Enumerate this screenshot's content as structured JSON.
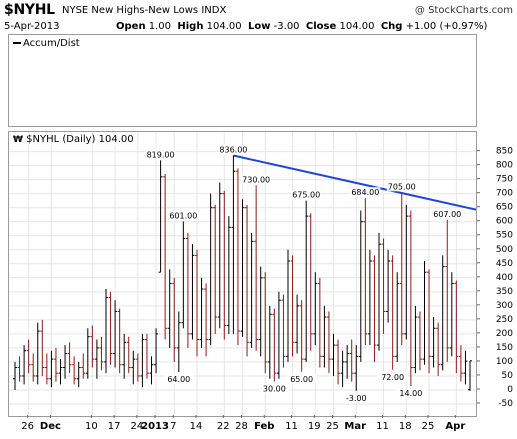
{
  "header": {
    "symbol": "$NYHL",
    "description": "NYSE New Highs-New Lows",
    "exchange": "INDX",
    "copyright": "@ StockCharts.com",
    "date": "5-Apr-2013",
    "open_label": "Open",
    "open_value": "1.00",
    "high_label": "High",
    "high_value": "104.00",
    "low_label": "Low",
    "low_value": "-3.00",
    "close_label": "Close",
    "close_value": "104.00",
    "chg_label": "Chg",
    "chg_value": "+1.00 (+0.97%)"
  },
  "indicator_panel": {
    "legend": "Accum/Dist"
  },
  "main_panel": {
    "legend": "$NYHL (Daily) 104.00",
    "legend_icon": "chart-style-icon"
  },
  "chart_data": {
    "type": "bar",
    "style": "ohlc",
    "series_name": "$NYHL (Daily)",
    "colors": {
      "up": "#000000",
      "down": "#8b1a1a",
      "trendline": "#1f45d6",
      "grid": "#e6e6e6"
    },
    "ylim": [
      -50,
      870
    ],
    "y_ticks": [
      -50,
      0,
      50,
      100,
      150,
      200,
      250,
      300,
      350,
      400,
      450,
      500,
      550,
      600,
      650,
      700,
      750,
      800,
      850
    ],
    "grid": true,
    "x_tick_labels": [
      {
        "label": "26",
        "index": 3,
        "bold": false
      },
      {
        "label": "Dec",
        "index": 8,
        "bold": true
      },
      {
        "label": "10",
        "index": 17,
        "bold": false
      },
      {
        "label": "17",
        "index": 22,
        "bold": false
      },
      {
        "label": "24",
        "index": 27,
        "bold": false
      },
      {
        "label": "2013",
        "index": 31,
        "bold": true
      },
      {
        "label": "7",
        "index": 35,
        "bold": false
      },
      {
        "label": "14",
        "index": 40,
        "bold": false
      },
      {
        "label": "22",
        "index": 46,
        "bold": false
      },
      {
        "label": "28",
        "index": 50,
        "bold": false
      },
      {
        "label": "Feb",
        "index": 55,
        "bold": true
      },
      {
        "label": "11",
        "index": 61,
        "bold": false
      },
      {
        "label": "19",
        "index": 66,
        "bold": false
      },
      {
        "label": "25",
        "index": 70,
        "bold": false
      },
      {
        "label": "Mar",
        "index": 75,
        "bold": true
      },
      {
        "label": "11",
        "index": 81,
        "bold": false
      },
      {
        "label": "18",
        "index": 86,
        "bold": false
      },
      {
        "label": "25",
        "index": 91,
        "bold": false
      },
      {
        "label": "Apr",
        "index": 97,
        "bold": true
      }
    ],
    "annotations": [
      {
        "text": "819.00",
        "index": 32,
        "value": 819,
        "pos": "above"
      },
      {
        "text": "601.00",
        "index": 37,
        "value": 601,
        "pos": "above"
      },
      {
        "text": "64.00",
        "index": 36,
        "value": 64,
        "pos": "below"
      },
      {
        "text": "836.00",
        "index": 48,
        "value": 836,
        "pos": "above"
      },
      {
        "text": "730.00",
        "index": 53,
        "value": 730,
        "pos": "above"
      },
      {
        "text": "30.00",
        "index": 57,
        "value": 30,
        "pos": "below"
      },
      {
        "text": "675.00",
        "index": 64,
        "value": 675,
        "pos": "above"
      },
      {
        "text": "65.00",
        "index": 63,
        "value": 65,
        "pos": "below"
      },
      {
        "text": "684.00",
        "index": 77,
        "value": 684,
        "pos": "above"
      },
      {
        "text": "-3.00",
        "index": 75,
        "value": -3,
        "pos": "below"
      },
      {
        "text": "705.00",
        "index": 85,
        "value": 705,
        "pos": "above"
      },
      {
        "text": "72.00",
        "index": 83,
        "value": 72,
        "pos": "below"
      },
      {
        "text": "14.00",
        "index": 87,
        "value": 14,
        "pos": "below"
      },
      {
        "text": "607.00",
        "index": 95,
        "value": 607,
        "pos": "above"
      }
    ],
    "trendline": {
      "from": {
        "index": 48,
        "value": 836
      },
      "to": {
        "index": 103,
        "value": 637
      }
    },
    "bars": [
      {
        "o": 40,
        "h": 100,
        "l": 0,
        "c": 80
      },
      {
        "o": 80,
        "h": 120,
        "l": 30,
        "c": 50
      },
      {
        "o": 50,
        "h": 160,
        "l": 20,
        "c": 140
      },
      {
        "o": 140,
        "h": 180,
        "l": 60,
        "c": 90
      },
      {
        "o": 90,
        "h": 130,
        "l": 30,
        "c": 50
      },
      {
        "o": 50,
        "h": 240,
        "l": 20,
        "c": 210
      },
      {
        "o": 210,
        "h": 250,
        "l": 50,
        "c": 80
      },
      {
        "o": 80,
        "h": 130,
        "l": 20,
        "c": 40
      },
      {
        "o": 40,
        "h": 140,
        "l": 10,
        "c": 110
      },
      {
        "o": 110,
        "h": 150,
        "l": 30,
        "c": 60
      },
      {
        "o": 60,
        "h": 110,
        "l": 20,
        "c": 80
      },
      {
        "o": 80,
        "h": 160,
        "l": 40,
        "c": 130
      },
      {
        "o": 130,
        "h": 170,
        "l": 60,
        "c": 90
      },
      {
        "o": 90,
        "h": 120,
        "l": 20,
        "c": 40
      },
      {
        "o": 40,
        "h": 100,
        "l": 10,
        "c": 80
      },
      {
        "o": 80,
        "h": 130,
        "l": 40,
        "c": 60
      },
      {
        "o": 60,
        "h": 220,
        "l": 40,
        "c": 190
      },
      {
        "o": 190,
        "h": 230,
        "l": 80,
        "c": 110
      },
      {
        "o": 110,
        "h": 180,
        "l": 40,
        "c": 150
      },
      {
        "o": 150,
        "h": 190,
        "l": 70,
        "c": 100
      },
      {
        "o": 100,
        "h": 360,
        "l": 60,
        "c": 330
      },
      {
        "o": 330,
        "h": 350,
        "l": 90,
        "c": 130
      },
      {
        "o": 130,
        "h": 320,
        "l": 80,
        "c": 280
      },
      {
        "o": 280,
        "h": 290,
        "l": 60,
        "c": 90
      },
      {
        "o": 90,
        "h": 200,
        "l": 40,
        "c": 170
      },
      {
        "o": 170,
        "h": 190,
        "l": 60,
        "c": 80
      },
      {
        "o": 80,
        "h": 140,
        "l": 20,
        "c": 110
      },
      {
        "o": 110,
        "h": 130,
        "l": 30,
        "c": 50
      },
      {
        "o": 50,
        "h": 200,
        "l": 10,
        "c": 180
      },
      {
        "o": 180,
        "h": 200,
        "l": 40,
        "c": 60
      },
      {
        "o": 60,
        "h": 120,
        "l": 20,
        "c": 90
      },
      {
        "o": 90,
        "h": 220,
        "l": 60,
        "c": 200
      },
      {
        "o": 420,
        "h": 819,
        "l": 420,
        "c": 760
      },
      {
        "o": 760,
        "h": 770,
        "l": 180,
        "c": 220
      },
      {
        "o": 220,
        "h": 430,
        "l": 150,
        "c": 380
      },
      {
        "o": 380,
        "h": 400,
        "l": 100,
        "c": 150
      },
      {
        "o": 150,
        "h": 280,
        "l": 64,
        "c": 240
      },
      {
        "o": 240,
        "h": 601,
        "l": 220,
        "c": 540
      },
      {
        "o": 540,
        "h": 560,
        "l": 150,
        "c": 200
      },
      {
        "o": 200,
        "h": 520,
        "l": 180,
        "c": 480
      },
      {
        "o": 480,
        "h": 500,
        "l": 120,
        "c": 180
      },
      {
        "o": 180,
        "h": 400,
        "l": 150,
        "c": 360
      },
      {
        "o": 360,
        "h": 380,
        "l": 120,
        "c": 180
      },
      {
        "o": 180,
        "h": 700,
        "l": 160,
        "c": 650
      },
      {
        "o": 650,
        "h": 660,
        "l": 200,
        "c": 260
      },
      {
        "o": 260,
        "h": 740,
        "l": 220,
        "c": 700
      },
      {
        "o": 700,
        "h": 710,
        "l": 180,
        "c": 230
      },
      {
        "o": 230,
        "h": 620,
        "l": 200,
        "c": 580
      },
      {
        "o": 580,
        "h": 836,
        "l": 200,
        "c": 780
      },
      {
        "o": 780,
        "h": 790,
        "l": 160,
        "c": 210
      },
      {
        "o": 210,
        "h": 680,
        "l": 190,
        "c": 650
      },
      {
        "o": 650,
        "h": 660,
        "l": 120,
        "c": 170
      },
      {
        "o": 170,
        "h": 560,
        "l": 150,
        "c": 530
      },
      {
        "o": 530,
        "h": 730,
        "l": 140,
        "c": 180
      },
      {
        "o": 180,
        "h": 440,
        "l": 120,
        "c": 400
      },
      {
        "o": 400,
        "h": 420,
        "l": 60,
        "c": 100
      },
      {
        "o": 100,
        "h": 300,
        "l": 40,
        "c": 270
      },
      {
        "o": 270,
        "h": 290,
        "l": 30,
        "c": 60
      },
      {
        "o": 60,
        "h": 350,
        "l": 40,
        "c": 320
      },
      {
        "o": 320,
        "h": 340,
        "l": 80,
        "c": 120
      },
      {
        "o": 120,
        "h": 500,
        "l": 100,
        "c": 460
      },
      {
        "o": 460,
        "h": 480,
        "l": 120,
        "c": 170
      },
      {
        "o": 170,
        "h": 340,
        "l": 130,
        "c": 300
      },
      {
        "o": 300,
        "h": 320,
        "l": 65,
        "c": 110
      },
      {
        "o": 110,
        "h": 675,
        "l": 100,
        "c": 620
      },
      {
        "o": 620,
        "h": 630,
        "l": 140,
        "c": 200
      },
      {
        "o": 200,
        "h": 420,
        "l": 160,
        "c": 380
      },
      {
        "o": 380,
        "h": 400,
        "l": 80,
        "c": 120
      },
      {
        "o": 120,
        "h": 300,
        "l": 80,
        "c": 260
      },
      {
        "o": 260,
        "h": 280,
        "l": 60,
        "c": 110
      },
      {
        "o": 110,
        "h": 200,
        "l": 50,
        "c": 160
      },
      {
        "o": 160,
        "h": 180,
        "l": 20,
        "c": 60
      },
      {
        "o": 60,
        "h": 140,
        "l": 10,
        "c": 100
      },
      {
        "o": 100,
        "h": 160,
        "l": 40,
        "c": 130
      },
      {
        "o": 130,
        "h": 180,
        "l": 30,
        "c": 60
      },
      {
        "o": 60,
        "h": 160,
        "l": -3,
        "c": 120
      },
      {
        "o": 120,
        "h": 640,
        "l": 100,
        "c": 600
      },
      {
        "o": 600,
        "h": 684,
        "l": 160,
        "c": 200
      },
      {
        "o": 200,
        "h": 500,
        "l": 160,
        "c": 460
      },
      {
        "o": 460,
        "h": 480,
        "l": 100,
        "c": 160
      },
      {
        "o": 160,
        "h": 560,
        "l": 140,
        "c": 520
      },
      {
        "o": 520,
        "h": 540,
        "l": 200,
        "c": 280
      },
      {
        "o": 280,
        "h": 500,
        "l": 240,
        "c": 460
      },
      {
        "o": 460,
        "h": 480,
        "l": 72,
        "c": 120
      },
      {
        "o": 120,
        "h": 420,
        "l": 100,
        "c": 380
      },
      {
        "o": 380,
        "h": 705,
        "l": 160,
        "c": 200
      },
      {
        "o": 200,
        "h": 660,
        "l": 180,
        "c": 620
      },
      {
        "o": 620,
        "h": 640,
        "l": 14,
        "c": 80
      },
      {
        "o": 80,
        "h": 300,
        "l": 60,
        "c": 260
      },
      {
        "o": 260,
        "h": 280,
        "l": 70,
        "c": 110
      },
      {
        "o": 110,
        "h": 460,
        "l": 90,
        "c": 420
      },
      {
        "o": 420,
        "h": 430,
        "l": 60,
        "c": 120
      },
      {
        "o": 120,
        "h": 260,
        "l": 80,
        "c": 220
      },
      {
        "o": 220,
        "h": 240,
        "l": 50,
        "c": 90
      },
      {
        "o": 90,
        "h": 480,
        "l": 70,
        "c": 440
      },
      {
        "o": 440,
        "h": 607,
        "l": 100,
        "c": 150
      },
      {
        "o": 150,
        "h": 420,
        "l": 120,
        "c": 380
      },
      {
        "o": 380,
        "h": 390,
        "l": 60,
        "c": 120
      },
      {
        "o": 120,
        "h": 160,
        "l": 30,
        "c": 60
      },
      {
        "o": 60,
        "h": 140,
        "l": 20,
        "c": 103
      },
      {
        "o": 1,
        "h": 104,
        "l": -3,
        "c": 104
      }
    ]
  }
}
